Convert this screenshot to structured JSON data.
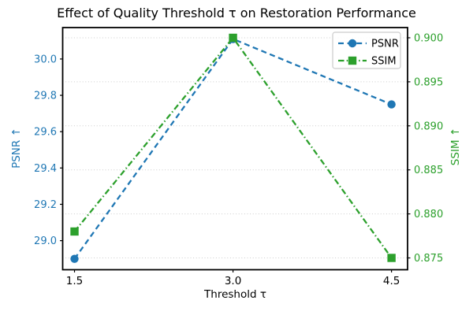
{
  "chart_data": {
    "type": "line",
    "title": "Effect of Quality Threshold τ on Restoration Performance",
    "xlabel": "Threshold τ",
    "x": [
      1.5,
      3.0,
      4.5
    ],
    "x_tick_labels": [
      "1.5",
      "3.0",
      "4.5"
    ],
    "x_range": [
      1.388,
      4.652
    ],
    "series": [
      {
        "name": "PSNR",
        "axis": "left",
        "values": [
          28.9,
          30.11,
          29.75
        ],
        "color": "#1f77b4",
        "marker": "circle",
        "linestyle": "dashed"
      },
      {
        "name": "SSIM",
        "axis": "right",
        "values": [
          0.878,
          0.9,
          0.875
        ],
        "color": "#2ca02c",
        "marker": "square",
        "linestyle": "dashdot"
      }
    ],
    "left_axis": {
      "label": "PSNR ↑",
      "color": "#1f77b4",
      "ticks": [
        29.0,
        29.2,
        29.4,
        29.6,
        29.8,
        30.0
      ],
      "tick_labels": [
        "29.0",
        "29.2",
        "29.4",
        "29.6",
        "29.8",
        "30.0"
      ],
      "range": [
        28.84,
        30.173
      ]
    },
    "right_axis": {
      "label": "SSIM ↑",
      "color": "#2ca02c",
      "ticks": [
        0.875,
        0.88,
        0.885,
        0.89,
        0.895,
        0.9
      ],
      "tick_labels": [
        "0.875",
        "0.880",
        "0.885",
        "0.890",
        "0.895",
        "0.900"
      ],
      "range": [
        0.87366,
        0.90116
      ]
    },
    "grid": {
      "axis": "y",
      "source_axis": "right",
      "style": "dotted",
      "color": "#cccccc"
    },
    "legend": {
      "position": "upper right",
      "entries": [
        "PSNR",
        "SSIM"
      ]
    }
  }
}
